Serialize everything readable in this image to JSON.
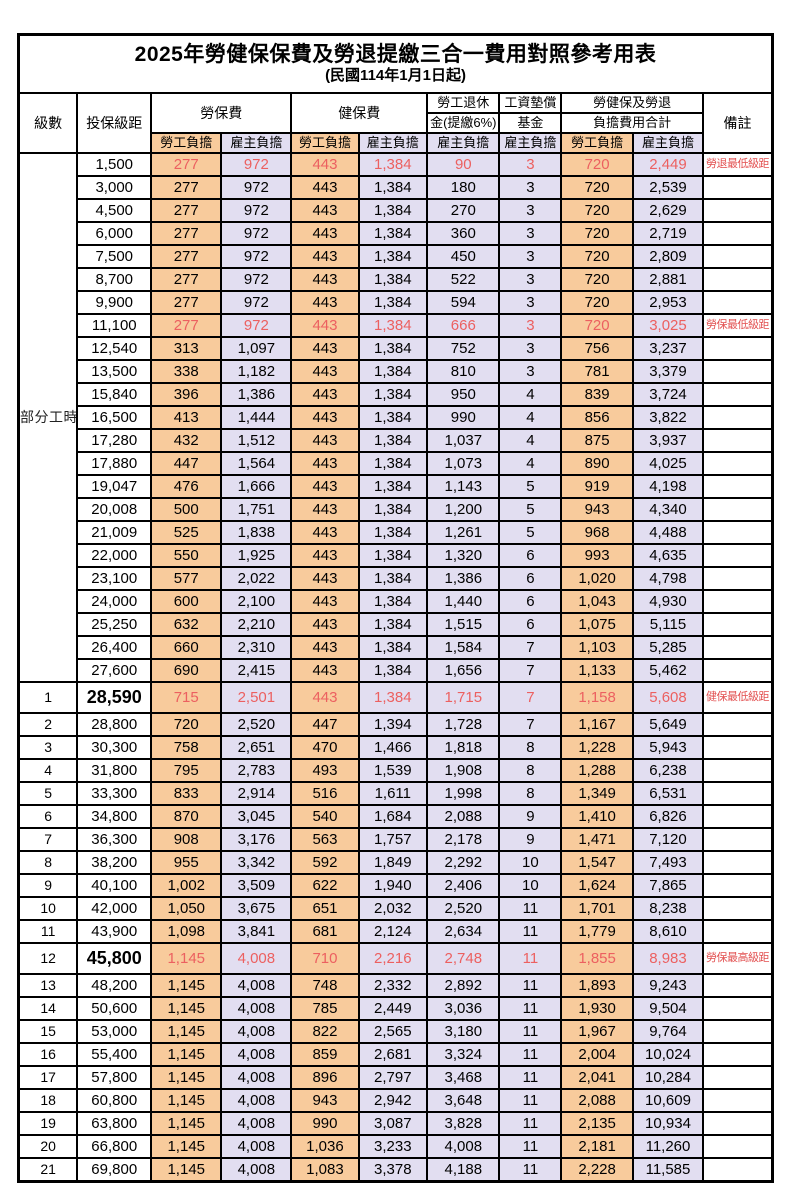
{
  "table": {
    "title": "2025年勞健保保費及勞退提繳三合一費用對照參考用表",
    "subtitle": "(民國114年1月1日起)",
    "part_time_label": "部分工時",
    "part_time_span": 23,
    "colors": {
      "employee_bg": "#F8CB9C",
      "employer_bg": "#E2DEF1",
      "highlight_red": "#EC6060",
      "remark_red": "#E24F4F"
    },
    "header": {
      "level": "級數",
      "bracket": "投保級距",
      "labor_group": "勞保費",
      "health_group": "健保費",
      "pension_line1": "勞工退休",
      "pension_line2": "金(提繳6%)",
      "fund_line1": "工資墊償",
      "fund_line2": "基金",
      "total_line1": "勞健保及勞退",
      "total_line2": "負擔費用合計",
      "remark": "備註",
      "sub_employee": "勞工負擔",
      "sub_employer": "雇主負擔"
    },
    "rows": [
      {
        "level": "",
        "bracket": "1,500",
        "li_emp": "277",
        "li_er": "972",
        "hi_emp": "443",
        "hi_er": "1,384",
        "pension": "90",
        "fund": "3",
        "tot_emp": "720",
        "tot_er": "2,449",
        "remark": "勞退最低級距",
        "hl": true,
        "big": false
      },
      {
        "level": "",
        "bracket": "3,000",
        "li_emp": "277",
        "li_er": "972",
        "hi_emp": "443",
        "hi_er": "1,384",
        "pension": "180",
        "fund": "3",
        "tot_emp": "720",
        "tot_er": "2,539",
        "remark": "",
        "hl": false,
        "big": false
      },
      {
        "level": "",
        "bracket": "4,500",
        "li_emp": "277",
        "li_er": "972",
        "hi_emp": "443",
        "hi_er": "1,384",
        "pension": "270",
        "fund": "3",
        "tot_emp": "720",
        "tot_er": "2,629",
        "remark": "",
        "hl": false,
        "big": false
      },
      {
        "level": "",
        "bracket": "6,000",
        "li_emp": "277",
        "li_er": "972",
        "hi_emp": "443",
        "hi_er": "1,384",
        "pension": "360",
        "fund": "3",
        "tot_emp": "720",
        "tot_er": "2,719",
        "remark": "",
        "hl": false,
        "big": false
      },
      {
        "level": "",
        "bracket": "7,500",
        "li_emp": "277",
        "li_er": "972",
        "hi_emp": "443",
        "hi_er": "1,384",
        "pension": "450",
        "fund": "3",
        "tot_emp": "720",
        "tot_er": "2,809",
        "remark": "",
        "hl": false,
        "big": false
      },
      {
        "level": "",
        "bracket": "8,700",
        "li_emp": "277",
        "li_er": "972",
        "hi_emp": "443",
        "hi_er": "1,384",
        "pension": "522",
        "fund": "3",
        "tot_emp": "720",
        "tot_er": "2,881",
        "remark": "",
        "hl": false,
        "big": false
      },
      {
        "level": "",
        "bracket": "9,900",
        "li_emp": "277",
        "li_er": "972",
        "hi_emp": "443",
        "hi_er": "1,384",
        "pension": "594",
        "fund": "3",
        "tot_emp": "720",
        "tot_er": "2,953",
        "remark": "",
        "hl": false,
        "big": false
      },
      {
        "level": "",
        "bracket": "11,100",
        "li_emp": "277",
        "li_er": "972",
        "hi_emp": "443",
        "hi_er": "1,384",
        "pension": "666",
        "fund": "3",
        "tot_emp": "720",
        "tot_er": "3,025",
        "remark": "勞保最低級距",
        "hl": true,
        "big": false
      },
      {
        "level": "",
        "bracket": "12,540",
        "li_emp": "313",
        "li_er": "1,097",
        "hi_emp": "443",
        "hi_er": "1,384",
        "pension": "752",
        "fund": "3",
        "tot_emp": "756",
        "tot_er": "3,237",
        "remark": "",
        "hl": false,
        "big": false
      },
      {
        "level": "",
        "bracket": "13,500",
        "li_emp": "338",
        "li_er": "1,182",
        "hi_emp": "443",
        "hi_er": "1,384",
        "pension": "810",
        "fund": "3",
        "tot_emp": "781",
        "tot_er": "3,379",
        "remark": "",
        "hl": false,
        "big": false
      },
      {
        "level": "",
        "bracket": "15,840",
        "li_emp": "396",
        "li_er": "1,386",
        "hi_emp": "443",
        "hi_er": "1,384",
        "pension": "950",
        "fund": "4",
        "tot_emp": "839",
        "tot_er": "3,724",
        "remark": "",
        "hl": false,
        "big": false
      },
      {
        "level": "",
        "bracket": "16,500",
        "li_emp": "413",
        "li_er": "1,444",
        "hi_emp": "443",
        "hi_er": "1,384",
        "pension": "990",
        "fund": "4",
        "tot_emp": "856",
        "tot_er": "3,822",
        "remark": "",
        "hl": false,
        "big": false
      },
      {
        "level": "",
        "bracket": "17,280",
        "li_emp": "432",
        "li_er": "1,512",
        "hi_emp": "443",
        "hi_er": "1,384",
        "pension": "1,037",
        "fund": "4",
        "tot_emp": "875",
        "tot_er": "3,937",
        "remark": "",
        "hl": false,
        "big": false
      },
      {
        "level": "",
        "bracket": "17,880",
        "li_emp": "447",
        "li_er": "1,564",
        "hi_emp": "443",
        "hi_er": "1,384",
        "pension": "1,073",
        "fund": "4",
        "tot_emp": "890",
        "tot_er": "4,025",
        "remark": "",
        "hl": false,
        "big": false
      },
      {
        "level": "",
        "bracket": "19,047",
        "li_emp": "476",
        "li_er": "1,666",
        "hi_emp": "443",
        "hi_er": "1,384",
        "pension": "1,143",
        "fund": "5",
        "tot_emp": "919",
        "tot_er": "4,198",
        "remark": "",
        "hl": false,
        "big": false
      },
      {
        "level": "",
        "bracket": "20,008",
        "li_emp": "500",
        "li_er": "1,751",
        "hi_emp": "443",
        "hi_er": "1,384",
        "pension": "1,200",
        "fund": "5",
        "tot_emp": "943",
        "tot_er": "4,340",
        "remark": "",
        "hl": false,
        "big": false
      },
      {
        "level": "",
        "bracket": "21,009",
        "li_emp": "525",
        "li_er": "1,838",
        "hi_emp": "443",
        "hi_er": "1,384",
        "pension": "1,261",
        "fund": "5",
        "tot_emp": "968",
        "tot_er": "4,488",
        "remark": "",
        "hl": false,
        "big": false
      },
      {
        "level": "",
        "bracket": "22,000",
        "li_emp": "550",
        "li_er": "1,925",
        "hi_emp": "443",
        "hi_er": "1,384",
        "pension": "1,320",
        "fund": "6",
        "tot_emp": "993",
        "tot_er": "4,635",
        "remark": "",
        "hl": false,
        "big": false
      },
      {
        "level": "",
        "bracket": "23,100",
        "li_emp": "577",
        "li_er": "2,022",
        "hi_emp": "443",
        "hi_er": "1,384",
        "pension": "1,386",
        "fund": "6",
        "tot_emp": "1,020",
        "tot_er": "4,798",
        "remark": "",
        "hl": false,
        "big": false
      },
      {
        "level": "",
        "bracket": "24,000",
        "li_emp": "600",
        "li_er": "2,100",
        "hi_emp": "443",
        "hi_er": "1,384",
        "pension": "1,440",
        "fund": "6",
        "tot_emp": "1,043",
        "tot_er": "4,930",
        "remark": "",
        "hl": false,
        "big": false
      },
      {
        "level": "",
        "bracket": "25,250",
        "li_emp": "632",
        "li_er": "2,210",
        "hi_emp": "443",
        "hi_er": "1,384",
        "pension": "1,515",
        "fund": "6",
        "tot_emp": "1,075",
        "tot_er": "5,115",
        "remark": "",
        "hl": false,
        "big": false
      },
      {
        "level": "",
        "bracket": "26,400",
        "li_emp": "660",
        "li_er": "2,310",
        "hi_emp": "443",
        "hi_er": "1,384",
        "pension": "1,584",
        "fund": "7",
        "tot_emp": "1,103",
        "tot_er": "5,285",
        "remark": "",
        "hl": false,
        "big": false
      },
      {
        "level": "",
        "bracket": "27,600",
        "li_emp": "690",
        "li_er": "2,415",
        "hi_emp": "443",
        "hi_er": "1,384",
        "pension": "1,656",
        "fund": "7",
        "tot_emp": "1,133",
        "tot_er": "5,462",
        "remark": "",
        "hl": false,
        "big": false
      },
      {
        "level": "1",
        "bracket": "28,590",
        "li_emp": "715",
        "li_er": "2,501",
        "hi_emp": "443",
        "hi_er": "1,384",
        "pension": "1,715",
        "fund": "7",
        "tot_emp": "1,158",
        "tot_er": "5,608",
        "remark": "健保最低級距",
        "hl": true,
        "big": true
      },
      {
        "level": "2",
        "bracket": "28,800",
        "li_emp": "720",
        "li_er": "2,520",
        "hi_emp": "447",
        "hi_er": "1,394",
        "pension": "1,728",
        "fund": "7",
        "tot_emp": "1,167",
        "tot_er": "5,649",
        "remark": "",
        "hl": false,
        "big": false
      },
      {
        "level": "3",
        "bracket": "30,300",
        "li_emp": "758",
        "li_er": "2,651",
        "hi_emp": "470",
        "hi_er": "1,466",
        "pension": "1,818",
        "fund": "8",
        "tot_emp": "1,228",
        "tot_er": "5,943",
        "remark": "",
        "hl": false,
        "big": false
      },
      {
        "level": "4",
        "bracket": "31,800",
        "li_emp": "795",
        "li_er": "2,783",
        "hi_emp": "493",
        "hi_er": "1,539",
        "pension": "1,908",
        "fund": "8",
        "tot_emp": "1,288",
        "tot_er": "6,238",
        "remark": "",
        "hl": false,
        "big": false
      },
      {
        "level": "5",
        "bracket": "33,300",
        "li_emp": "833",
        "li_er": "2,914",
        "hi_emp": "516",
        "hi_er": "1,611",
        "pension": "1,998",
        "fund": "8",
        "tot_emp": "1,349",
        "tot_er": "6,531",
        "remark": "",
        "hl": false,
        "big": false
      },
      {
        "level": "6",
        "bracket": "34,800",
        "li_emp": "870",
        "li_er": "3,045",
        "hi_emp": "540",
        "hi_er": "1,684",
        "pension": "2,088",
        "fund": "9",
        "tot_emp": "1,410",
        "tot_er": "6,826",
        "remark": "",
        "hl": false,
        "big": false
      },
      {
        "level": "7",
        "bracket": "36,300",
        "li_emp": "908",
        "li_er": "3,176",
        "hi_emp": "563",
        "hi_er": "1,757",
        "pension": "2,178",
        "fund": "9",
        "tot_emp": "1,471",
        "tot_er": "7,120",
        "remark": "",
        "hl": false,
        "big": false
      },
      {
        "level": "8",
        "bracket": "38,200",
        "li_emp": "955",
        "li_er": "3,342",
        "hi_emp": "592",
        "hi_er": "1,849",
        "pension": "2,292",
        "fund": "10",
        "tot_emp": "1,547",
        "tot_er": "7,493",
        "remark": "",
        "hl": false,
        "big": false
      },
      {
        "level": "9",
        "bracket": "40,100",
        "li_emp": "1,002",
        "li_er": "3,509",
        "hi_emp": "622",
        "hi_er": "1,940",
        "pension": "2,406",
        "fund": "10",
        "tot_emp": "1,624",
        "tot_er": "7,865",
        "remark": "",
        "hl": false,
        "big": false
      },
      {
        "level": "10",
        "bracket": "42,000",
        "li_emp": "1,050",
        "li_er": "3,675",
        "hi_emp": "651",
        "hi_er": "2,032",
        "pension": "2,520",
        "fund": "11",
        "tot_emp": "1,701",
        "tot_er": "8,238",
        "remark": "",
        "hl": false,
        "big": false
      },
      {
        "level": "11",
        "bracket": "43,900",
        "li_emp": "1,098",
        "li_er": "3,841",
        "hi_emp": "681",
        "hi_er": "2,124",
        "pension": "2,634",
        "fund": "11",
        "tot_emp": "1,779",
        "tot_er": "8,610",
        "remark": "",
        "hl": false,
        "big": false
      },
      {
        "level": "12",
        "bracket": "45,800",
        "li_emp": "1,145",
        "li_er": "4,008",
        "hi_emp": "710",
        "hi_er": "2,216",
        "pension": "2,748",
        "fund": "11",
        "tot_emp": "1,855",
        "tot_er": "8,983",
        "remark": "勞保最高級距",
        "hl": true,
        "big": true
      },
      {
        "level": "13",
        "bracket": "48,200",
        "li_emp": "1,145",
        "li_er": "4,008",
        "hi_emp": "748",
        "hi_er": "2,332",
        "pension": "2,892",
        "fund": "11",
        "tot_emp": "1,893",
        "tot_er": "9,243",
        "remark": "",
        "hl": false,
        "big": false
      },
      {
        "level": "14",
        "bracket": "50,600",
        "li_emp": "1,145",
        "li_er": "4,008",
        "hi_emp": "785",
        "hi_er": "2,449",
        "pension": "3,036",
        "fund": "11",
        "tot_emp": "1,930",
        "tot_er": "9,504",
        "remark": "",
        "hl": false,
        "big": false
      },
      {
        "level": "15",
        "bracket": "53,000",
        "li_emp": "1,145",
        "li_er": "4,008",
        "hi_emp": "822",
        "hi_er": "2,565",
        "pension": "3,180",
        "fund": "11",
        "tot_emp": "1,967",
        "tot_er": "9,764",
        "remark": "",
        "hl": false,
        "big": false
      },
      {
        "level": "16",
        "bracket": "55,400",
        "li_emp": "1,145",
        "li_er": "4,008",
        "hi_emp": "859",
        "hi_er": "2,681",
        "pension": "3,324",
        "fund": "11",
        "tot_emp": "2,004",
        "tot_er": "10,024",
        "remark": "",
        "hl": false,
        "big": false
      },
      {
        "level": "17",
        "bracket": "57,800",
        "li_emp": "1,145",
        "li_er": "4,008",
        "hi_emp": "896",
        "hi_er": "2,797",
        "pension": "3,468",
        "fund": "11",
        "tot_emp": "2,041",
        "tot_er": "10,284",
        "remark": "",
        "hl": false,
        "big": false
      },
      {
        "level": "18",
        "bracket": "60,800",
        "li_emp": "1,145",
        "li_er": "4,008",
        "hi_emp": "943",
        "hi_er": "2,942",
        "pension": "3,648",
        "fund": "11",
        "tot_emp": "2,088",
        "tot_er": "10,609",
        "remark": "",
        "hl": false,
        "big": false
      },
      {
        "level": "19",
        "bracket": "63,800",
        "li_emp": "1,145",
        "li_er": "4,008",
        "hi_emp": "990",
        "hi_er": "3,087",
        "pension": "3,828",
        "fund": "11",
        "tot_emp": "2,135",
        "tot_er": "10,934",
        "remark": "",
        "hl": false,
        "big": false
      },
      {
        "level": "20",
        "bracket": "66,800",
        "li_emp": "1,145",
        "li_er": "4,008",
        "hi_emp": "1,036",
        "hi_er": "3,233",
        "pension": "4,008",
        "fund": "11",
        "tot_emp": "2,181",
        "tot_er": "11,260",
        "remark": "",
        "hl": false,
        "big": false
      },
      {
        "level": "21",
        "bracket": "69,800",
        "li_emp": "1,145",
        "li_er": "4,008",
        "hi_emp": "1,083",
        "hi_er": "3,378",
        "pension": "4,188",
        "fund": "11",
        "tot_emp": "2,228",
        "tot_er": "11,585",
        "remark": "",
        "hl": false,
        "big": false
      }
    ]
  }
}
